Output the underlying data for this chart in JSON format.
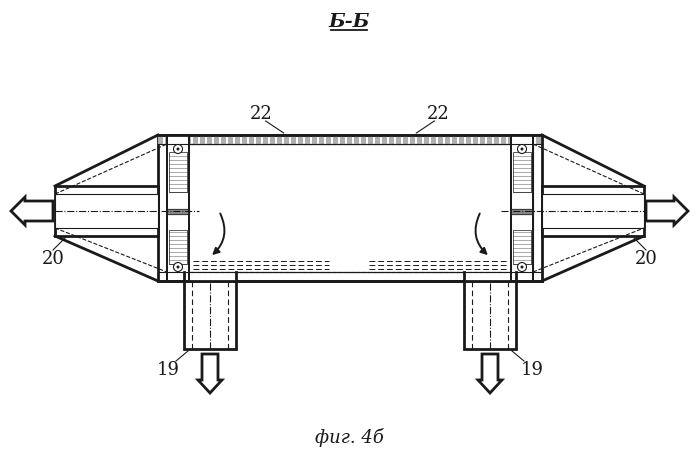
{
  "title": "Б-Б",
  "subtitle": "фиг. 4б",
  "bg_color": "#ffffff",
  "line_color": "#1a1a1a",
  "fig_width": 6.99,
  "fig_height": 4.64,
  "dpi": 100
}
